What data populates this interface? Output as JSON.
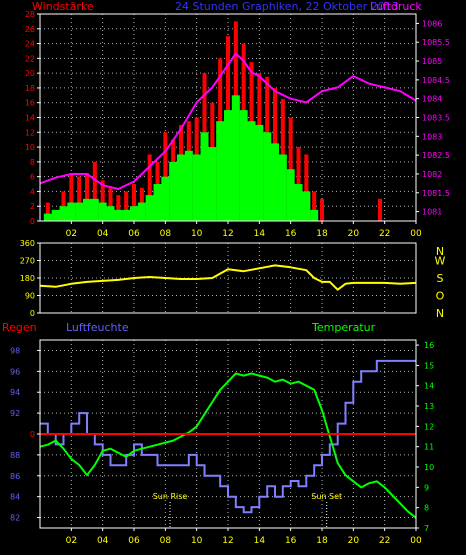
{
  "header": {
    "left": "Windstärke",
    "center": "24 Stunden Graphiken, 22 Oktober 2013",
    "right": "Luftdruck"
  },
  "colors": {
    "background": "#000000",
    "frame": "#ffffff",
    "grid": "#ffffff",
    "wind_gust": "#ff0000",
    "wind_avg": "#00ff00",
    "pressure": "#ff00ff",
    "direction": "#ffff00",
    "humidity": "#8080ff",
    "temperature": "#00ff00",
    "rain": "#ff0000",
    "axis_blue": "#6060ff",
    "axis_green": "#00ff00",
    "direction_letters": "#ffff00",
    "hour_labels": "#ffff00",
    "header_blue": "#3333ff"
  },
  "chart_data": [
    {
      "type": "bar",
      "name": "wind",
      "title": "Windstärke",
      "x_labels": [
        "02",
        "04",
        "06",
        "08",
        "10",
        "12",
        "14",
        "16",
        "18",
        "20",
        "22",
        "00"
      ],
      "ylim": [
        0,
        28
      ],
      "y_ticks": [
        0,
        2,
        4,
        6,
        8,
        10,
        12,
        14,
        16,
        18,
        20,
        22,
        24,
        26,
        28
      ],
      "y_tick_labels": [
        "0",
        "2",
        "4",
        "6",
        "8",
        "10",
        "12",
        "14",
        "16",
        "18",
        "20",
        "22",
        "24",
        "26",
        "28"
      ],
      "grid": true,
      "x_range": [
        0,
        24
      ],
      "series": [
        {
          "name": "gust",
          "role": "gust",
          "x": [
            0.5,
            1.5,
            2.0,
            2.5,
            3.0,
            3.5,
            4.0,
            4.5,
            5.0,
            5.5,
            6.0,
            6.5,
            7.0,
            7.5,
            8.0,
            8.5,
            9.0,
            9.5,
            10.0,
            10.5,
            11.0,
            11.5,
            12.0,
            12.5,
            13.0,
            13.5,
            14.0,
            14.5,
            15.0,
            15.5,
            16.0,
            16.5,
            17.0,
            17.5,
            18.0,
            21.7
          ],
          "values": [
            2.5,
            4.0,
            6.5,
            6.0,
            6.5,
            8.0,
            5.5,
            4.5,
            3.5,
            4.0,
            5.0,
            4.5,
            9.0,
            8.0,
            12.0,
            11.0,
            13.0,
            13.5,
            14.0,
            20.0,
            16.0,
            22.0,
            25.0,
            27.0,
            24.0,
            21.5,
            20.0,
            19.5,
            18.0,
            16.5,
            14.0,
            10.0,
            9.0,
            4.0,
            3.0,
            3.0
          ]
        },
        {
          "name": "average",
          "role": "average",
          "x": [
            0.5,
            1.0,
            1.5,
            2.0,
            2.5,
            3.0,
            3.5,
            4.0,
            4.5,
            5.0,
            5.5,
            6.0,
            6.5,
            7.0,
            7.5,
            8.0,
            8.5,
            9.0,
            9.5,
            10.0,
            10.5,
            11.0,
            11.5,
            12.0,
            12.5,
            13.0,
            13.5,
            14.0,
            14.5,
            15.0,
            15.5,
            16.0,
            16.5,
            17.0,
            17.5
          ],
          "values": [
            1.0,
            1.5,
            2.0,
            2.5,
            2.5,
            3.0,
            3.0,
            2.5,
            2.0,
            1.5,
            1.5,
            2.0,
            2.5,
            3.5,
            5.0,
            6.0,
            8.0,
            9.0,
            9.5,
            9.0,
            12.0,
            10.0,
            13.5,
            15.0,
            17.0,
            15.0,
            13.5,
            13.0,
            12.0,
            10.5,
            9.0,
            7.0,
            5.0,
            4.0,
            1.5
          ]
        }
      ]
    },
    {
      "type": "line",
      "name": "pressure",
      "title": "Luftdruck",
      "axis": "right",
      "ylim": [
        1080.75,
        1086.25
      ],
      "y_ticks": [
        1081,
        1081.5,
        1082,
        1082.5,
        1083,
        1083.5,
        1084,
        1084.5,
        1085,
        1085.5,
        1086
      ],
      "y_tick_labels": [
        "1081",
        "1081.5",
        "1082",
        "1082.5",
        "1083",
        "1083.5",
        "1084",
        "1084.5",
        "1085",
        "1085.5",
        "1086"
      ],
      "series": [
        {
          "name": "Luftdruck",
          "x": [
            0,
            1,
            2,
            3,
            4,
            5,
            6,
            7,
            8,
            9,
            10,
            11,
            12,
            12.5,
            13,
            13.5,
            14,
            15,
            16,
            17,
            18,
            19,
            20,
            21,
            22,
            23,
            24
          ],
          "values": [
            1081.75,
            1081.9,
            1082.0,
            1082.0,
            1081.7,
            1081.6,
            1081.8,
            1082.2,
            1082.6,
            1083.2,
            1083.9,
            1084.3,
            1084.9,
            1085.2,
            1085.0,
            1084.7,
            1084.6,
            1084.2,
            1084.0,
            1083.9,
            1084.2,
            1084.3,
            1084.6,
            1084.4,
            1084.3,
            1084.2,
            1083.95
          ]
        }
      ]
    },
    {
      "type": "line",
      "name": "direction",
      "ylim": [
        0,
        360
      ],
      "y_ticks": [
        0,
        90,
        180,
        270,
        360
      ],
      "y_tick_labels": [
        "0",
        "90",
        "180",
        "270",
        "360"
      ],
      "right_labels": [
        "N",
        "W",
        "S",
        "O",
        "N"
      ],
      "grid": true,
      "series": [
        {
          "name": "direction",
          "x": [
            0,
            1,
            2,
            3,
            4,
            5,
            6,
            7,
            8,
            9,
            10,
            11,
            12,
            13,
            14,
            15,
            16,
            17,
            17.5,
            18,
            18.5,
            19,
            19.5,
            20,
            21,
            22,
            23,
            24
          ],
          "values": [
            140,
            135,
            150,
            160,
            165,
            170,
            180,
            185,
            180,
            175,
            175,
            180,
            225,
            215,
            230,
            245,
            235,
            220,
            180,
            160,
            160,
            120,
            150,
            155,
            155,
            155,
            150,
            155
          ]
        }
      ]
    },
    {
      "type": "line",
      "name": "humidity_temperature",
      "left_title": "Luftfeuchte",
      "rain_title": "Regen",
      "right_title": "Temperatur",
      "humidity_ylim": [
        81,
        99
      ],
      "humidity_ticks": [
        82,
        84,
        86,
        88,
        90,
        92,
        94,
        96,
        98
      ],
      "humidity_tick_labels": [
        "82",
        "84",
        "86",
        "88",
        "90",
        "92",
        "94",
        "96",
        "98"
      ],
      "temperature_ylim": [
        7,
        16.25
      ],
      "temperature_ticks": [
        7,
        8,
        9,
        10,
        11,
        12,
        13,
        14,
        15,
        16
      ],
      "temperature_tick_labels": [
        "7",
        "8",
        "9",
        "10",
        "11",
        "12",
        "13",
        "14",
        "15",
        "16"
      ],
      "rain_tick_label": "0",
      "rain_value": 0,
      "rain_axis_level": 90,
      "annotations": [
        {
          "text": "Sun Rise",
          "x": 8.3
        },
        {
          "text": "Sun Set",
          "x": 18.3
        }
      ],
      "series": [
        {
          "name": "Luftfeuchte",
          "role": "humidity",
          "x": [
            0,
            0.5,
            1,
            1.5,
            2,
            2.5,
            3,
            3.5,
            4,
            4.5,
            5,
            5.5,
            6,
            6.5,
            7,
            7.5,
            8,
            8.5,
            9,
            9.5,
            10,
            10.5,
            11,
            11.5,
            12,
            12.5,
            13,
            13.5,
            14,
            14.5,
            15,
            15.5,
            16,
            16.5,
            17,
            17.5,
            18,
            18.5,
            19,
            19.5,
            20,
            20.5,
            21,
            21.5,
            22,
            22.5,
            23,
            23.5,
            24
          ],
          "values": [
            91,
            90,
            89,
            90,
            91,
            92,
            90,
            89,
            88,
            87,
            87,
            88,
            89,
            88,
            88,
            87,
            87,
            87,
            87,
            88,
            87,
            86,
            86,
            85,
            84,
            83,
            82.5,
            83,
            84,
            85,
            84,
            85,
            85.5,
            85,
            86,
            87,
            88,
            89,
            91,
            93,
            95,
            96,
            96,
            97,
            97,
            97,
            97,
            97,
            97
          ]
        },
        {
          "name": "Temperatur",
          "role": "temperature",
          "x": [
            0,
            0.5,
            1,
            1.5,
            2,
            2.5,
            3,
            3.5,
            4,
            4.5,
            5,
            5.5,
            6,
            6.5,
            7,
            7.5,
            8,
            8.5,
            9,
            9.5,
            10,
            10.5,
            11,
            11.5,
            12,
            12.5,
            13,
            13.5,
            14,
            14.5,
            15,
            15.5,
            16,
            16.5,
            17,
            17.5,
            18,
            18.5,
            19,
            19.5,
            20,
            20.5,
            21,
            21.5,
            22,
            22.5,
            23,
            23.5,
            24
          ],
          "values": [
            11.0,
            11.1,
            11.3,
            10.9,
            10.4,
            10.1,
            9.6,
            10.1,
            10.8,
            10.9,
            10.7,
            10.5,
            10.8,
            10.9,
            11.0,
            11.1,
            11.2,
            11.3,
            11.5,
            11.7,
            12.0,
            12.6,
            13.2,
            13.8,
            14.2,
            14.6,
            14.5,
            14.6,
            14.5,
            14.4,
            14.2,
            14.3,
            14.1,
            14.2,
            14.0,
            13.8,
            12.8,
            11.5,
            10.2,
            9.6,
            9.3,
            9.0,
            9.2,
            9.3,
            9.0,
            8.6,
            8.2,
            7.8,
            7.5
          ]
        }
      ]
    }
  ]
}
